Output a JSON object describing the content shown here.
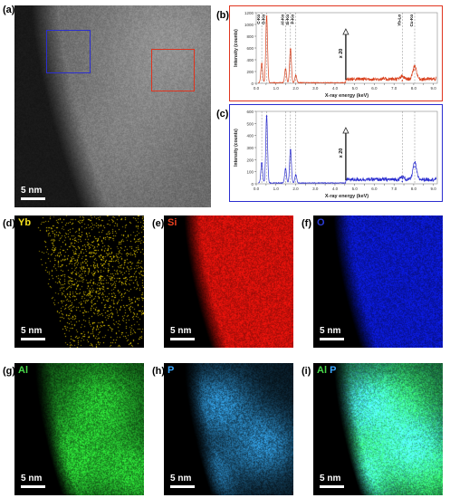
{
  "figure": {
    "panel_labels": {
      "a": "(a)",
      "b": "(b)",
      "c": "(c)",
      "d": "(d)",
      "e": "(e)",
      "f": "(f)",
      "g": "(g)",
      "h": "(h)",
      "i": "(i)"
    },
    "scale_bar": "5 nm",
    "map_elements": {
      "d": [
        {
          "text": "Yb",
          "color": "#f5e11e"
        }
      ],
      "e": [
        {
          "text": "Si",
          "color": "#e84020"
        }
      ],
      "f": [
        {
          "text": "O",
          "color": "#2c3cd8"
        }
      ],
      "g": [
        {
          "text": "Al",
          "color": "#48d84a"
        }
      ],
      "h": [
        {
          "text": "P",
          "color": "#3aa8ff"
        }
      ],
      "i": [
        {
          "text": "Al",
          "color": "#48d84a"
        },
        {
          "text": "P",
          "color": "#3aa8ff"
        }
      ]
    },
    "box_colors": {
      "red": "#e0341e",
      "blue": "#2b2ed0"
    }
  },
  "chart_data": [
    {
      "type": "line",
      "panel": "(b)",
      "xlabel": "X-ray energy (keV)",
      "ylabel": "Intensity (counts)",
      "xlim": [
        0,
        9.2
      ],
      "ylim": [
        0,
        1200
      ],
      "yticks": [
        0,
        200,
        400,
        600,
        800,
        1000,
        1200
      ],
      "xticks": [
        "0.0",
        "0.5",
        "1.0",
        "1.5",
        "2.0",
        "2.5",
        "3.0",
        "3.5",
        "4.0",
        "4.5",
        "5.0",
        "5.5",
        "6.0",
        "6.5",
        "7.0",
        "7.5",
        "8.0",
        "8.5",
        "9.0"
      ],
      "series_color": "#d9401c",
      "peak_labels": [
        "C-Kα",
        "O-Kα",
        "Al-Kα",
        "Si-Kα",
        "P-Kα",
        "Yb-Lα",
        "Cu-Kα"
      ],
      "multiplier_label": "x 20",
      "peaks": [
        {
          "x": 0.28,
          "y": 330
        },
        {
          "x": 0.53,
          "y": 1140
        },
        {
          "x": 1.49,
          "y": 240
        },
        {
          "x": 1.74,
          "y": 580
        },
        {
          "x": 2.01,
          "y": 130
        },
        {
          "x": 7.42,
          "y": 45
        },
        {
          "x": 8.05,
          "y": 230
        }
      ]
    },
    {
      "type": "line",
      "panel": "(c)",
      "xlabel": "X-ray energy (keV)",
      "ylabel": "Intensity (counts)",
      "xlim": [
        0,
        9.2
      ],
      "ylim": [
        0,
        600
      ],
      "yticks": [
        0,
        100,
        200,
        300,
        400,
        500,
        600
      ],
      "xticks": [
        "0.0",
        "0.5",
        "1.0",
        "1.5",
        "2.0",
        "2.5",
        "3.0",
        "3.5",
        "4.0",
        "4.5",
        "5.0",
        "5.5",
        "6.0",
        "6.5",
        "7.0",
        "7.5",
        "8.0",
        "8.5",
        "9.0"
      ],
      "series_color": "#2b2ed0",
      "multiplier_label": "x 20",
      "peaks": [
        {
          "x": 0.28,
          "y": 170
        },
        {
          "x": 0.53,
          "y": 560
        },
        {
          "x": 1.49,
          "y": 120
        },
        {
          "x": 1.74,
          "y": 280
        },
        {
          "x": 2.01,
          "y": 70
        },
        {
          "x": 7.42,
          "y": 20
        },
        {
          "x": 8.05,
          "y": 140
        }
      ]
    }
  ]
}
